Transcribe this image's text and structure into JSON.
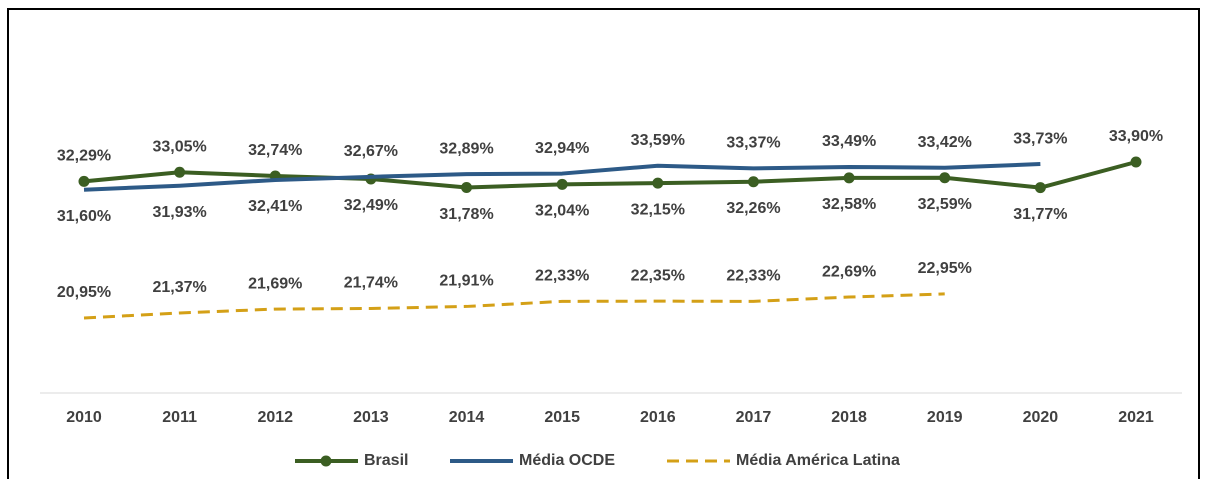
{
  "chart_data": {
    "type": "line",
    "categories": [
      "2010",
      "2011",
      "2012",
      "2013",
      "2014",
      "2015",
      "2016",
      "2017",
      "2018",
      "2019",
      "2020",
      "2021"
    ],
    "series": [
      {
        "name": "Brasil",
        "color": "#3b5e22",
        "markers": true,
        "dashed": false,
        "values": [
          32.29,
          33.05,
          32.74,
          32.49,
          31.78,
          32.04,
          32.15,
          32.26,
          32.58,
          32.59,
          31.77,
          33.9
        ],
        "value_labels": [
          "32,29%",
          "33,05%",
          "32,74%",
          "32,49%",
          "31,78%",
          "32,04%",
          "32,15%",
          "32,26%",
          "32,58%",
          "32,59%",
          "31,77%",
          "33,90%"
        ]
      },
      {
        "name": "Média OCDE",
        "color": "#2d5a87",
        "markers": false,
        "dashed": false,
        "values": [
          31.6,
          31.93,
          32.41,
          32.67,
          32.89,
          32.94,
          33.59,
          33.37,
          33.49,
          33.42,
          33.73,
          null
        ],
        "value_labels": [
          "31,60%",
          "31,93%",
          "32,41%",
          "32,67%",
          "32,89%",
          "32,94%",
          "33,59%",
          "33,37%",
          "33,49%",
          "33,42%",
          "33,73%",
          null
        ]
      },
      {
        "name": "Média América Latina",
        "color": "#d4a017",
        "markers": false,
        "dashed": true,
        "values": [
          20.95,
          21.37,
          21.69,
          21.74,
          21.91,
          22.33,
          22.35,
          22.33,
          22.69,
          22.95,
          null,
          null
        ],
        "value_labels": [
          "20,95%",
          "21,37%",
          "21,69%",
          "21,74%",
          "21,91%",
          "22,33%",
          "22,35%",
          "22,33%",
          "22,69%",
          "22,95%",
          null,
          null
        ]
      }
    ],
    "legend": "bottom"
  }
}
